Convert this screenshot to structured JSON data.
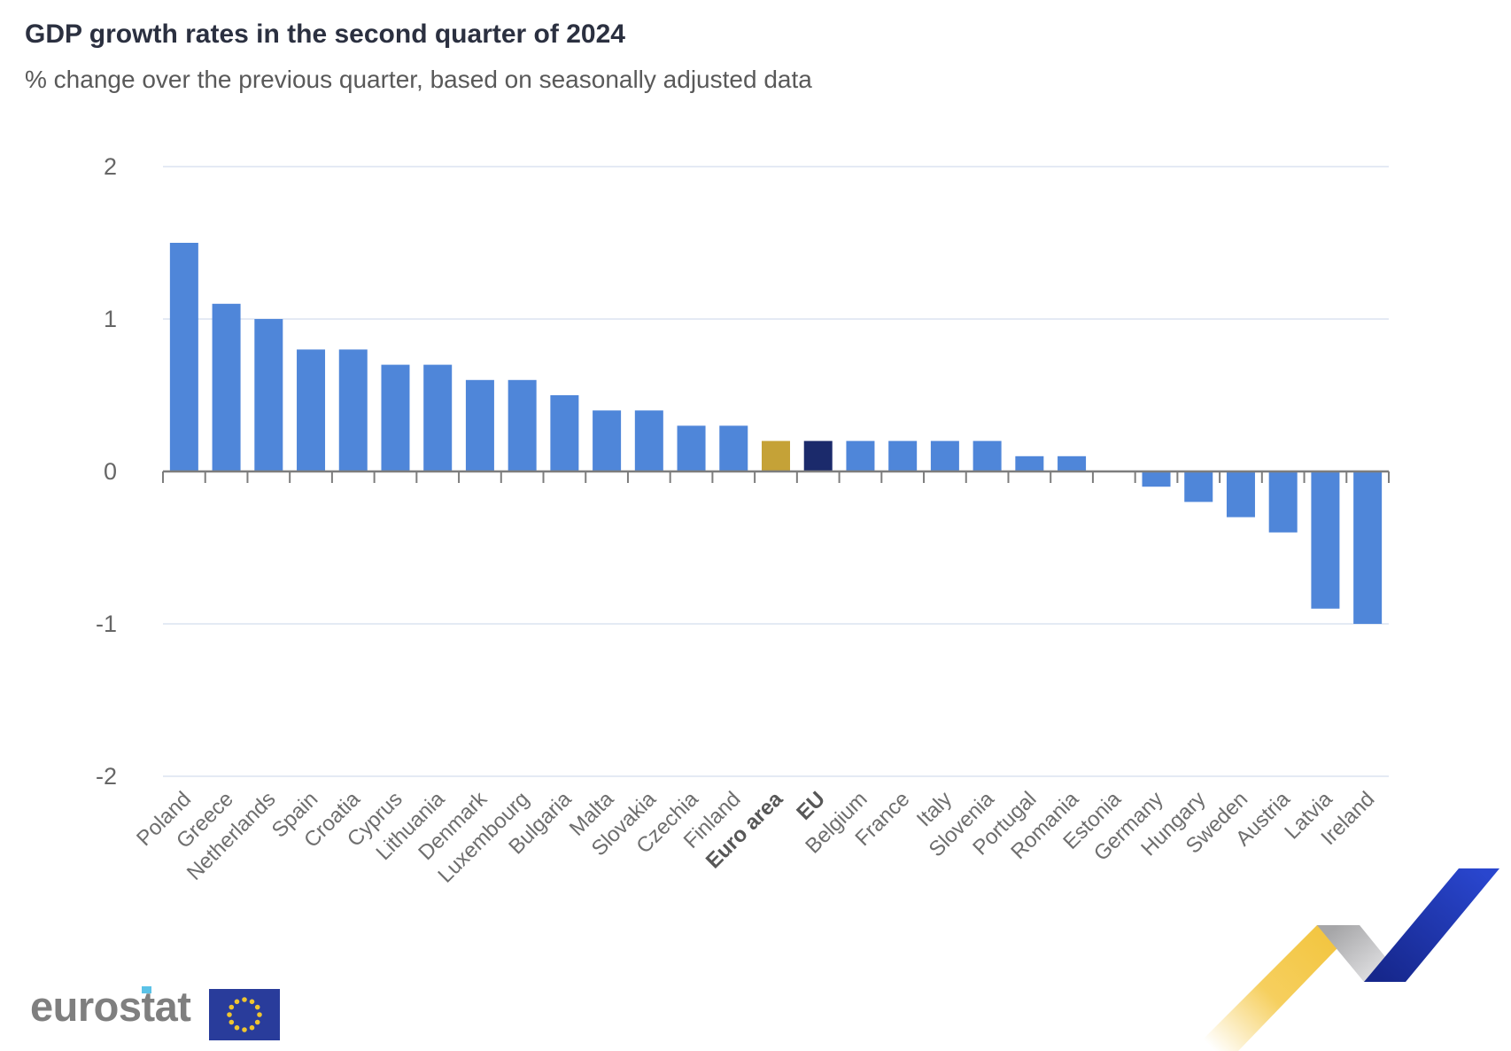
{
  "header": {
    "title": "GDP growth rates in the second quarter of 2024",
    "subtitle": "% change over the previous quarter, based on seasonally adjusted data"
  },
  "chart_data": {
    "type": "bar",
    "title": "GDP growth rates in the second quarter of 2024",
    "subtitle": "% change over the previous quarter, based on seasonally adjusted data",
    "unit": "% change over the previous quarter",
    "categories": [
      "Poland",
      "Greece",
      "Netherlands",
      "Spain",
      "Croatia",
      "Cyprus",
      "Lithuania",
      "Denmark",
      "Luxembourg",
      "Bulgaria",
      "Malta",
      "Slovakia",
      "Czechia",
      "Finland",
      "Euro area",
      "EU",
      "Belgium",
      "France",
      "Italy",
      "Slovenia",
      "Portugal",
      "Romania",
      "Estonia",
      "Germany",
      "Hungary",
      "Sweden",
      "Austria",
      "Latvia",
      "Ireland"
    ],
    "values": [
      1.5,
      1.1,
      1.0,
      0.8,
      0.8,
      0.7,
      0.7,
      0.6,
      0.6,
      0.5,
      0.4,
      0.4,
      0.3,
      0.3,
      0.2,
      0.2,
      0.2,
      0.2,
      0.2,
      0.2,
      0.1,
      0.1,
      0.0,
      -0.1,
      -0.2,
      -0.3,
      -0.4,
      -0.9,
      -1.0
    ],
    "bold_categories": [
      "Euro area",
      "EU"
    ],
    "highlight_colors": {
      "Euro area": "#C5A237",
      "EU": "#1B2A6B"
    },
    "ylim": [
      -2,
      2
    ],
    "yticks": [
      2,
      1,
      0,
      -1,
      -2
    ],
    "grid": true,
    "legend": false,
    "colors": {
      "bar_default": "#4F86D9",
      "grid": "#DCE3F0",
      "axis": "#7D7D7D",
      "tick_label": "#666666",
      "category_label": "#6E6E6E",
      "category_label_bold": "#575757"
    }
  },
  "footer": {
    "logo_text": "eurostat"
  }
}
